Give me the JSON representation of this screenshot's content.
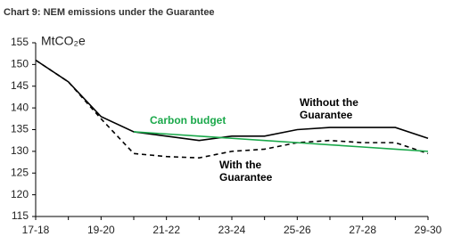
{
  "chart_data": {
    "type": "line",
    "title": "Chart 9: NEM emissions under the Guarantee",
    "y_label": "MtCO₂e",
    "categories": [
      "17-18",
      null,
      "19-20",
      null,
      "21-22",
      null,
      "23-24",
      null,
      "25-26",
      null,
      "27-28",
      null,
      "29-30"
    ],
    "ylim": [
      115,
      155
    ],
    "yticks": [
      115,
      120,
      125,
      130,
      135,
      140,
      145,
      150,
      155
    ],
    "series": [
      {
        "name": "Without the Guarantee",
        "color": "#000000",
        "dash": false,
        "values": [
          151,
          146,
          138,
          134.5,
          133.5,
          132.5,
          133.5,
          133.5,
          135,
          135.5,
          135.5,
          135.5,
          133
        ]
      },
      {
        "name": "With the Guarantee",
        "color": "#000000",
        "dash": true,
        "values": [
          151,
          146,
          137.5,
          129.5,
          128.8,
          128.5,
          130,
          130.5,
          132,
          132.5,
          132,
          132,
          129.5
        ]
      },
      {
        "name": "Carbon budget",
        "color": "#1aa84a",
        "dash": false,
        "values": [
          null,
          null,
          null,
          134.5,
          134,
          133.5,
          133,
          132.5,
          132,
          131.5,
          131,
          130.5,
          130
        ]
      }
    ],
    "annotations": [
      {
        "lines": [
          "Carbon budget"
        ],
        "color": "#1aa84a"
      },
      {
        "lines": [
          "Without the",
          "Guarantee"
        ],
        "color": "#000000"
      },
      {
        "lines": [
          "With the",
          "Guarantee"
        ],
        "color": "#000000"
      }
    ]
  }
}
